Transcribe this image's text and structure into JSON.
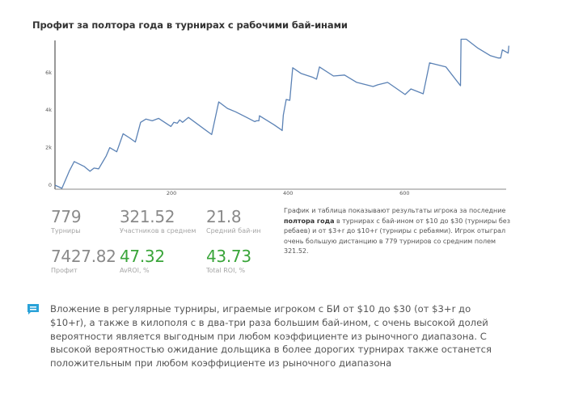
{
  "title": "Профит за полтора года в турнирах с рабочими бай-инами",
  "chart_data": {
    "type": "line",
    "title": "Профит за полтора года в турнирах с рабочими бай-инами",
    "xlabel": "",
    "ylabel": "",
    "x_ticks": [
      "200",
      "400",
      "600"
    ],
    "y_ticks": [
      "0",
      "2k",
      "4k",
      "6k"
    ],
    "xlim": [
      0,
      779
    ],
    "ylim": [
      -200,
      7900
    ],
    "grid": false,
    "line_color": "#5b82b5",
    "series": [
      {
        "name": "Профит",
        "x": [
          0,
          12,
          25,
          33,
          50,
          60,
          67,
          75,
          88,
          94,
          106,
          117,
          128,
          138,
          147,
          156,
          167,
          178,
          199,
          204,
          210,
          214,
          219,
          229,
          269,
          281,
          296,
          310,
          329,
          343,
          346,
          350,
          351,
          376,
          388,
          390,
          392,
          397,
          403,
          408,
          422,
          443,
          449,
          454,
          478,
          497,
          518,
          546,
          554,
          571,
          589,
          601,
          611,
          632,
          643,
          671,
          696,
          697,
          706,
          726,
          747,
          761,
          765,
          768,
          778,
          779
        ],
        "values": [
          0,
          -170,
          780,
          1260,
          1000,
          740,
          910,
          870,
          1560,
          2000,
          1780,
          2740,
          2520,
          2300,
          3350,
          3520,
          3430,
          3560,
          3130,
          3350,
          3300,
          3480,
          3350,
          3610,
          2700,
          4440,
          4090,
          3910,
          3610,
          3390,
          3430,
          3430,
          3700,
          3220,
          2960,
          2910,
          3740,
          4570,
          4520,
          6260,
          5960,
          5740,
          5650,
          6300,
          5820,
          5870,
          5480,
          5260,
          5350,
          5480,
          5090,
          4830,
          5130,
          4870,
          6520,
          6300,
          5300,
          7780,
          7780,
          7300,
          6910,
          6780,
          6780,
          7210,
          7040,
          7430
        ]
      }
    ]
  },
  "stats": [
    {
      "value": "779",
      "label": "Турниры",
      "color": "gray"
    },
    {
      "value": "321.52",
      "label": "Участников в среднем",
      "color": "gray"
    },
    {
      "value": "21.8",
      "label": "Средний бай-ин",
      "color": "gray"
    },
    {
      "value": "7427.82",
      "label": "Профит",
      "color": "gray"
    },
    {
      "value": "47.32",
      "label": "AvROI, %",
      "color": "green"
    },
    {
      "value": "43.73",
      "label": "Total ROI, %",
      "color": "green"
    }
  ],
  "description": {
    "part1": "График и таблица показывают результаты игрока за последние ",
    "bold": "полтора года",
    "part2": " в турнирах с бай-ином от $10 до $30 (турниры без ребаев) и от $3+r до $10+r (турниры с ребаями). Игрок отыграл очень большую дистанцию в 779 турниров со средним полем 321.52."
  },
  "note": {
    "icon": "comment-icon",
    "icon_color": "#2aa2d8",
    "text": "Вложение в регулярные турниры, играемые игроком с БИ от $10 до $30 (от $3+r до $10+r), а также в килополя с в два-три раза большим бай-ином, с очень высокой долей вероятности является выгодным при любом коэффициенте из рыночного диапазона. С высокой вероятностью ожидание дольщика в более дорогих турнирах также останется положительным при любом коэффициенте из рыночного диапазона"
  }
}
